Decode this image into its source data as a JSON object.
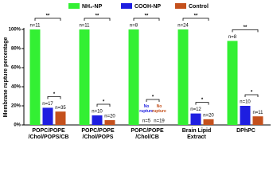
{
  "chart_data": {
    "type": "bar",
    "y_label": "Membrane rupture percentage",
    "categories": [
      "POPC/POPE\n/Chol/POPS/CB",
      "POPC/POPE\n/Chol/POPS",
      "POPC/POPE\n/Chol/CB",
      "Brain Lipid\nExtract",
      "DPhPC"
    ],
    "series": [
      {
        "name": "NH₂-NP",
        "color": "#33f033",
        "values": [
          100,
          100,
          100,
          100,
          88
        ],
        "n_labels": [
          "n=11",
          "n=11",
          "n=8",
          "n=24",
          "n=8"
        ],
        "notes": [
          null,
          null,
          null,
          null,
          null
        ]
      },
      {
        "name": "COOH-NP",
        "color": "#1e1ee0",
        "values": [
          18,
          10,
          0,
          12,
          20
        ],
        "n_labels": [
          "n=17",
          "n=10",
          "n=5",
          "n=12",
          "n=10"
        ],
        "notes": [
          null,
          null,
          "No\nrupture",
          null,
          null
        ]
      },
      {
        "name": "Control",
        "color": "#c4501c",
        "values": [
          14,
          5,
          0,
          6,
          9
        ],
        "n_labels": [
          "n=35",
          "n=20",
          "n=19",
          "n=20",
          "n=11"
        ],
        "notes": [
          null,
          null,
          "No\nrupture",
          null,
          null
        ]
      }
    ],
    "significance": [
      [
        "**",
        "*"
      ],
      [
        "**",
        "*"
      ],
      [
        "**",
        "*"
      ],
      [
        "**",
        "*"
      ],
      [
        "**",
        "*"
      ]
    ],
    "ylim": [
      0,
      100
    ],
    "yticks": [
      {
        "value": 0,
        "label": "0%"
      },
      {
        "value": 20,
        "label": "20%"
      },
      {
        "value": 40,
        "label": "40%"
      },
      {
        "value": 60,
        "label": "60%"
      },
      {
        "value": 80,
        "label": "80%"
      },
      {
        "value": 100,
        "label": "100%"
      }
    ],
    "legend": "top"
  }
}
